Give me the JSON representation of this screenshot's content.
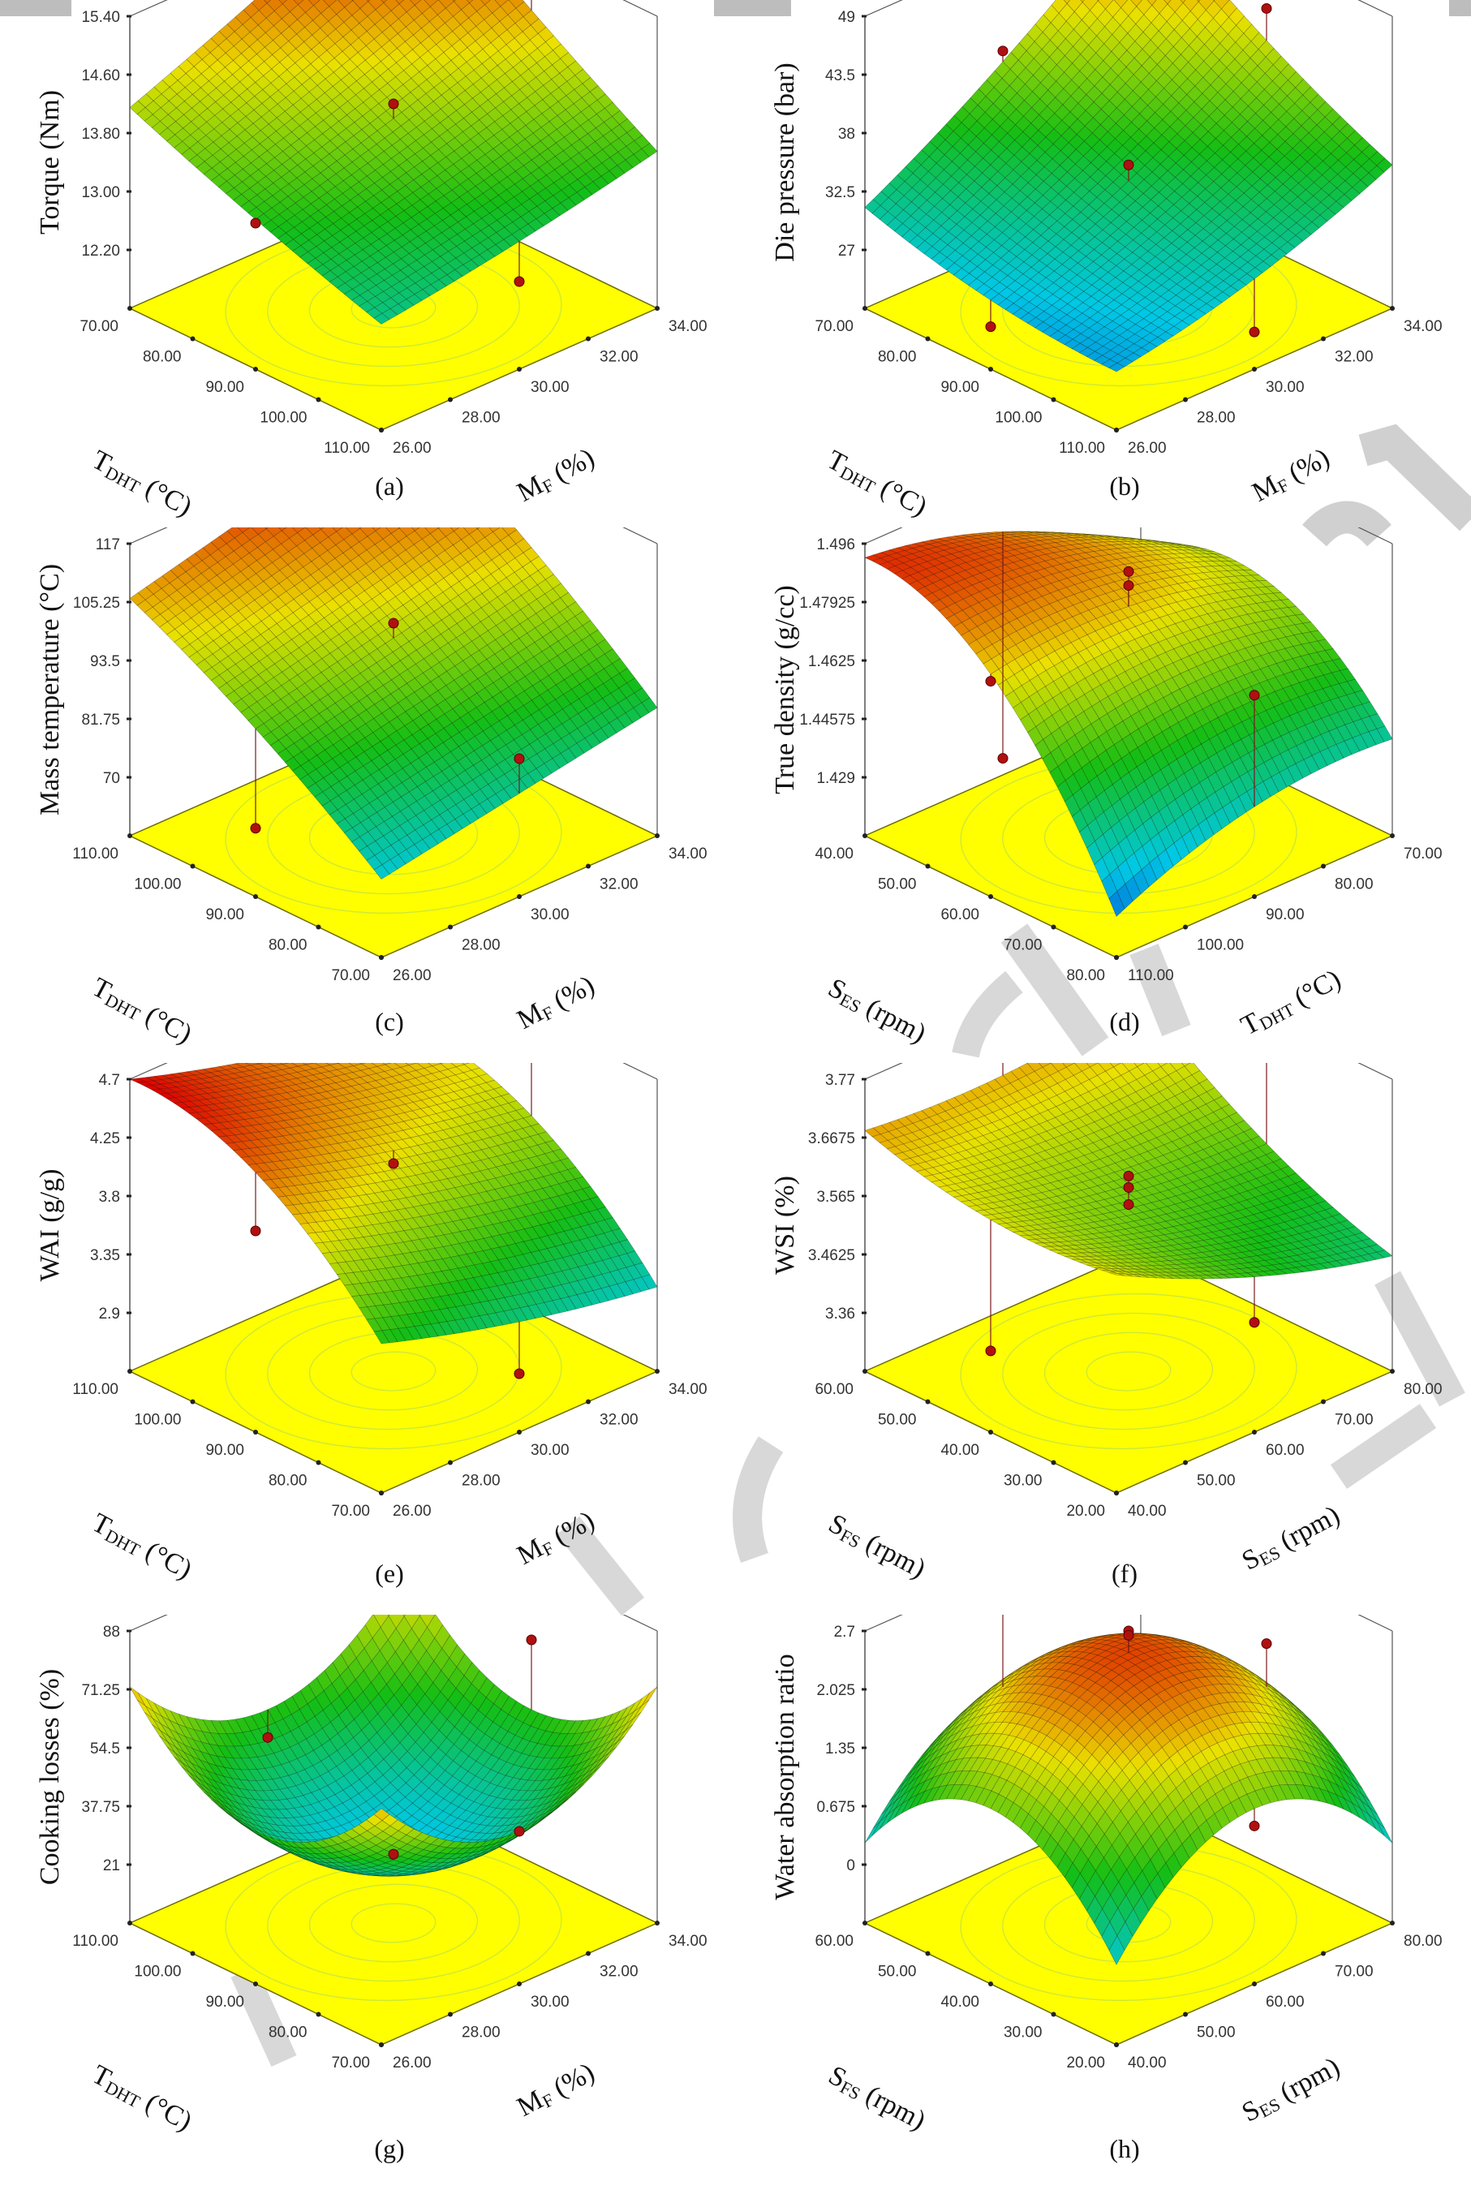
{
  "figure": {
    "watermark_color": "#bdbdbd",
    "floor_color": "#ffff00",
    "point_color": "#b01010"
  },
  "chart_data": [
    {
      "id": "a",
      "type": "surface3d",
      "caption": "(a)",
      "zlabel": "Torque (Nm)",
      "zlim": [
        11.4,
        15.4
      ],
      "zticks": [
        "12.20",
        "13.00",
        "13.80",
        "14.60",
        "15.40"
      ],
      "zticks_values": [
        12.2,
        13.0,
        13.8,
        14.6,
        15.4
      ],
      "left_axis": {
        "label_main": "T",
        "label_sub": "DHT",
        "label_unit": " (°C)",
        "ticks": [
          "70.00",
          "80.00",
          "90.00",
          "100.00",
          "110.00"
        ]
      },
      "right_axis": {
        "label_main": "M",
        "label_sub": "F",
        "label_unit": " (%)",
        "ticks": [
          "26.00",
          "28.00",
          "30.00",
          "32.00",
          "34.00"
        ]
      },
      "surface": {
        "b0": 14.0,
        "bL": -0.9,
        "bR": -0.6,
        "bLR": 0.25,
        "bLL": 0.05,
        "bRR": 0.05,
        "corner_color_ref": "range"
      },
      "design_points": [
        [
          -1,
          0,
          15.3
        ],
        [
          0,
          -1,
          15.1
        ],
        [
          0,
          0,
          14.2
        ],
        [
          0,
          1,
          13.4
        ],
        [
          1,
          0,
          12.6
        ]
      ]
    },
    {
      "id": "b",
      "type": "surface3d",
      "caption": "(b)",
      "zlabel": "Die pressure (bar)",
      "zlim": [
        21.5,
        49
      ],
      "zticks": [
        "27",
        "32.5",
        "38",
        "43.5",
        "49"
      ],
      "zticks_values": [
        27,
        32.5,
        38,
        43.5,
        49
      ],
      "left_axis": {
        "label_main": "T",
        "label_sub": "DHT",
        "label_unit": " (°C)",
        "ticks": [
          "70.00",
          "80.00",
          "90.00",
          "100.00",
          "110.00"
        ]
      },
      "right_axis": {
        "label_main": "M",
        "label_sub": "F",
        "label_unit": " (%)",
        "ticks": [
          "26.00",
          "28.00",
          "30.00",
          "32.00",
          "34.00"
        ]
      },
      "surface": {
        "b0": 33.5,
        "bL": -4.5,
        "bR": -6.5,
        "bLR": 2.5,
        "bLL": 1.0,
        "bRR": 1.0
      },
      "design_points": [
        [
          -1,
          0,
          40.0
        ],
        [
          0,
          -1,
          44.0
        ],
        [
          0,
          0,
          35.0
        ],
        [
          0,
          1,
          25.5
        ],
        [
          1,
          0,
          25.0
        ]
      ]
    },
    {
      "id": "c",
      "type": "surface3d",
      "caption": "(c)",
      "zlabel": "Mass temperature (°C)",
      "zlim": [
        58.25,
        117
      ],
      "zticks": [
        "70",
        "81.75",
        "93.5",
        "105.25",
        "117"
      ],
      "zticks_values": [
        70,
        81.75,
        93.5,
        105.25,
        117
      ],
      "left_axis": {
        "label_main": "T",
        "label_sub": "DHT",
        "label_unit": " (°C)",
        "ticks": [
          "110.00",
          "100.00",
          "90.00",
          "80.00",
          "70.00"
        ]
      },
      "right_axis": {
        "label_main": "M",
        "label_sub": "F",
        "label_unit": " (%)",
        "ticks": [
          "26.00",
          "28.00",
          "30.00",
          "32.00",
          "34.00"
        ]
      },
      "surface": {
        "b0": 98.0,
        "bL": -17.0,
        "bR": -6.0,
        "bLR": 1.0,
        "bLL": -2.0,
        "bRR": 0.0
      },
      "design_points": [
        [
          -1,
          0,
          120.0
        ],
        [
          0,
          0,
          101.0
        ],
        [
          1,
          0,
          86.0
        ],
        [
          0,
          1,
          72.0
        ]
      ]
    },
    {
      "id": "d",
      "type": "surface3d",
      "caption": "(d)",
      "zlabel": "True density (g/cc)",
      "zlim": [
        1.41225,
        1.496
      ],
      "zticks": [
        "1.429",
        "1.44575",
        "1.4625",
        "1.47925",
        "1.496"
      ],
      "zticks_values": [
        1.429,
        1.44575,
        1.4625,
        1.47925,
        1.496
      ],
      "left_axis": {
        "label_main": "S",
        "label_sub": "ES",
        "label_unit": " (rpm)",
        "ticks": [
          "40.00",
          "50.00",
          "60.00",
          "70.00",
          "80.00"
        ]
      },
      "right_axis": {
        "label_main": "T",
        "label_sub": "DHT",
        "label_unit": " (°C)",
        "ticks": [
          "110.00",
          "100.00",
          "90.00",
          "80.00",
          "70.00"
        ]
      },
      "surface": {
        "b0": 1.478,
        "bL": -0.022,
        "bR": 0.004,
        "bLR": -0.012,
        "bLL": -0.018,
        "bRR": -0.006
      },
      "design_points": [
        [
          0,
          0,
          1.488
        ],
        [
          0,
          0,
          1.484
        ],
        [
          1,
          0,
          1.47
        ],
        [
          0,
          1,
          1.474
        ],
        [
          -1,
          0,
          1.417
        ]
      ]
    },
    {
      "id": "e",
      "type": "surface3d",
      "caption": "(e)",
      "zlabel": "WAI (g/g)",
      "zlim": [
        2.45,
        4.7
      ],
      "zticks": [
        "2.9",
        "3.35",
        "3.8",
        "4.25",
        "4.7"
      ],
      "zticks_values": [
        2.9,
        3.35,
        3.8,
        4.25,
        4.7
      ],
      "left_axis": {
        "label_main": "T",
        "label_sub": "DHT",
        "label_unit": " (°C)",
        "ticks": [
          "110.00",
          "100.00",
          "90.00",
          "80.00",
          "70.00"
        ]
      },
      "right_axis": {
        "label_main": "M",
        "label_sub": "F",
        "label_unit": " (%)",
        "ticks": [
          "26.00",
          "28.00",
          "30.00",
          "32.00",
          "34.00"
        ]
      },
      "surface": {
        "b0": 4.15,
        "bL": -0.55,
        "bR": 0.25,
        "bLR": 0.0,
        "bLL": -0.3,
        "bRR": 0.05
      },
      "design_points": [
        [
          -1,
          0,
          4.45
        ],
        [
          0,
          -1,
          4.6
        ],
        [
          0,
          0,
          4.05
        ],
        [
          1,
          0,
          2.9
        ],
        [
          0,
          1,
          4.0
        ]
      ]
    },
    {
      "id": "f",
      "type": "surface3d",
      "caption": "(f)",
      "zlabel": "WSI (%)",
      "zlim": [
        3.2575,
        3.77
      ],
      "zticks": [
        "3.36",
        "3.4625",
        "3.565",
        "3.6675",
        "3.77"
      ],
      "zticks_values": [
        3.36,
        3.4625,
        3.565,
        3.6675,
        3.77
      ],
      "left_axis": {
        "label_main": "S",
        "label_sub": "FS",
        "label_unit": " (rpm)",
        "ticks": [
          "60.00",
          "50.00",
          "40.00",
          "30.00",
          "20.00"
        ]
      },
      "right_axis": {
        "label_main": "S",
        "label_sub": "ES",
        "label_unit": " (rpm)",
        "ticks": [
          "40.00",
          "50.00",
          "60.00",
          "70.00",
          "80.00"
        ]
      },
      "surface": {
        "b0": 3.57,
        "bL": -0.07,
        "bR": 0.04,
        "bLR": 0.05,
        "bLL": 0.03,
        "bRR": 0.02
      },
      "design_points": [
        [
          -1,
          0,
          3.72
        ],
        [
          0,
          -1,
          3.75
        ],
        [
          0,
          0,
          3.6
        ],
        [
          0,
          0,
          3.58
        ],
        [
          0,
          0,
          3.55
        ],
        [
          1,
          0,
          3.45
        ],
        [
          0,
          1,
          3.4
        ]
      ]
    },
    {
      "id": "g",
      "type": "surface3d",
      "caption": "(g)",
      "zlabel": "Cooking losses (%)",
      "zlim": [
        4.25,
        88
      ],
      "zticks": [
        "21",
        "37.75",
        "54.5",
        "71.25",
        "88"
      ],
      "zticks_values": [
        21,
        37.75,
        54.5,
        71.25,
        88
      ],
      "left_axis": {
        "label_main": "T",
        "label_sub": "DHT",
        "label_unit": " (°C)",
        "ticks": [
          "110.00",
          "100.00",
          "90.00",
          "80.00",
          "70.00"
        ]
      },
      "right_axis": {
        "label_main": "M",
        "label_sub": "F",
        "label_unit": " (%)",
        "ticks": [
          "26.00",
          "28.00",
          "30.00",
          "32.00",
          "34.00"
        ]
      },
      "surface": {
        "b0": 24.0,
        "bL": 0.0,
        "bR": 0.0,
        "bLR": 0.0,
        "bLL": 24.0,
        "bRR": 24.0
      },
      "design_points": [
        [
          0,
          -1,
          68.0
        ],
        [
          1,
          0,
          48.0
        ],
        [
          -1,
          0,
          40.0
        ],
        [
          0,
          0,
          24.0
        ]
      ]
    },
    {
      "id": "h",
      "type": "surface3d",
      "caption": "(h)",
      "zlabel": "Water absorption ratio",
      "zlim": [
        -0.675,
        2.7
      ],
      "zticks": [
        "0",
        "0.675",
        "1.35",
        "2.025",
        "2.7"
      ],
      "zticks_values": [
        0,
        0.675,
        1.35,
        2.025,
        2.7
      ],
      "left_axis": {
        "label_main": "S",
        "label_sub": "FS",
        "label_unit": " (rpm)",
        "ticks": [
          "60.00",
          "50.00",
          "40.00",
          "30.00",
          "20.00"
        ]
      },
      "right_axis": {
        "label_main": "S",
        "label_sub": "ES",
        "label_unit": " (rpm)",
        "ticks": [
          "40.00",
          "50.00",
          "60.00",
          "70.00",
          "80.00"
        ]
      },
      "surface": {
        "b0": 2.45,
        "bL": 0.0,
        "bR": 0.0,
        "bLR": 0.0,
        "bLL": -1.1,
        "bRR": -1.1
      },
      "design_points": [
        [
          0,
          0,
          2.7
        ],
        [
          0,
          0,
          2.65
        ],
        [
          -1,
          0,
          2.3
        ],
        [
          0,
          -1,
          1.85
        ],
        [
          1,
          0,
          1.15
        ]
      ]
    }
  ]
}
